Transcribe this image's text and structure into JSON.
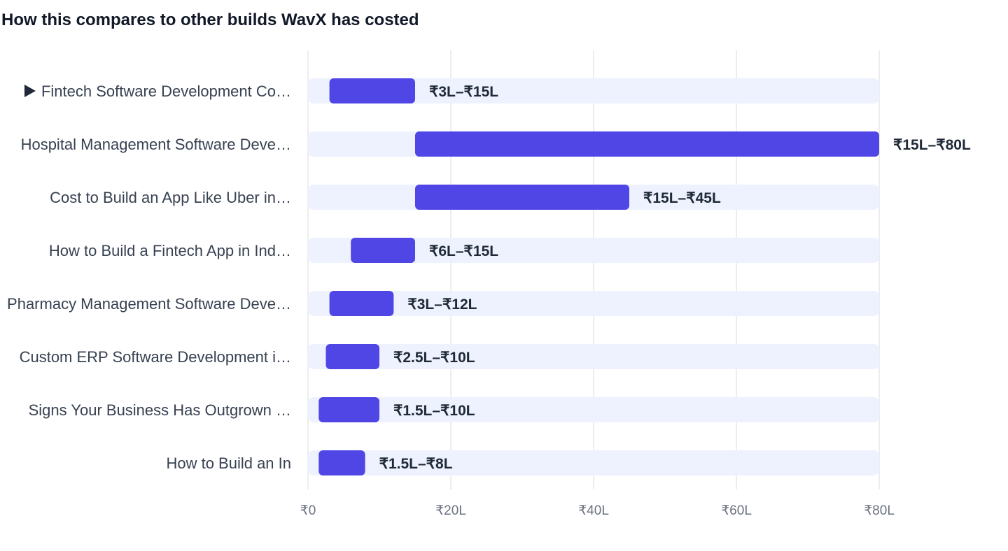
{
  "colors": {
    "bar": "#4f46e5",
    "track": "#eef2ff",
    "grid": "#e5e7eb",
    "label": "#374151",
    "value": "#1f2937",
    "tick": "#6b7280",
    "title": "#111827",
    "marker": "#1f2937"
  },
  "chart_data": {
    "type": "bar",
    "orientation": "horizontal-range",
    "title": "How this compares to other builds WavX has costed",
    "xlabel": "",
    "ylabel": "",
    "xlim": [
      0,
      80
    ],
    "grid": true,
    "x_ticks": [
      {
        "value": 0,
        "label": "₹0"
      },
      {
        "value": 20,
        "label": "₹20L"
      },
      {
        "value": 40,
        "label": "₹40L"
      },
      {
        "value": 60,
        "label": "₹60L"
      },
      {
        "value": 80,
        "label": "₹80L"
      }
    ],
    "categories": [
      "Fintech Software Development Co…",
      "Hospital Management Software Deve…",
      "Cost to Build an App Like Uber in…",
      "How to Build a Fintech App in Ind…",
      "Pharmacy Management Software Deve…",
      "Custom ERP Software Development i…",
      "Signs Your Business Has Outgrown …",
      "How to Build an In"
    ],
    "ranges": [
      {
        "low": 3,
        "high": 15,
        "label": "₹3L–₹15L",
        "current": true
      },
      {
        "low": 15,
        "high": 80,
        "label": "₹15L–₹80L",
        "current": false
      },
      {
        "low": 15,
        "high": 45,
        "label": "₹15L–₹45L",
        "current": false
      },
      {
        "low": 6,
        "high": 15,
        "label": "₹6L–₹15L",
        "current": false
      },
      {
        "low": 3,
        "high": 12,
        "label": "₹3L–₹12L",
        "current": false
      },
      {
        "low": 2.5,
        "high": 10,
        "label": "₹2.5L–₹10L",
        "current": false
      },
      {
        "low": 1.5,
        "high": 10,
        "label": "₹1.5L–₹10L",
        "current": false
      },
      {
        "low": 1.5,
        "high": 8,
        "label": "₹1.5L–₹8L",
        "current": false
      }
    ]
  }
}
